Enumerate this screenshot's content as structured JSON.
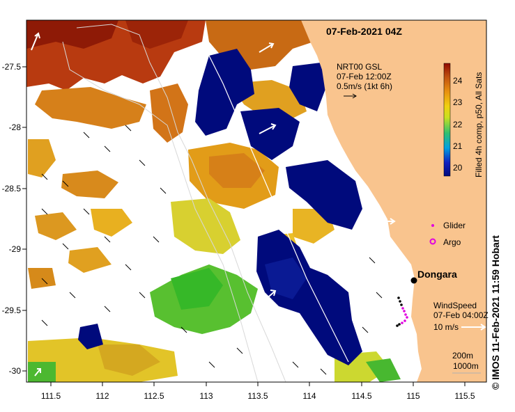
{
  "map": {
    "date_title": "07-Feb-2021 04Z",
    "credit": "© IMOS 11-Feb-2021 11:59 Hobart",
    "x_ticks": [
      "111.5",
      "112",
      "112.5",
      "113",
      "113.5",
      "114",
      "114.5",
      "115",
      "115.5"
    ],
    "y_ticks": [
      "-27.5",
      "-28",
      "-28.5",
      "-29",
      "-29.5",
      "-30"
    ],
    "current_legend": {
      "line1": "NRT00 GSL",
      "line2": "07-Feb 12:00Z",
      "line3": "0.5m/s (1kt 6h)"
    },
    "colorbar": {
      "label": "Filled 4h comp, p50, All Sats",
      "ticks": [
        "24",
        "23",
        "22",
        "21",
        "20"
      ]
    },
    "legend": {
      "glider": "Glider",
      "argo": "Argo"
    },
    "place": "Dongara",
    "wind_legend": {
      "line1": "WindSpeed",
      "line2": "07-Feb 04:00Z",
      "line3": "10 m/s"
    },
    "isobaths": [
      "200m",
      "1000m"
    ],
    "colors": {
      "land": "#f9c48e",
      "cold": "#000a7c",
      "glider": "#e000e0",
      "station": "#000000"
    }
  }
}
